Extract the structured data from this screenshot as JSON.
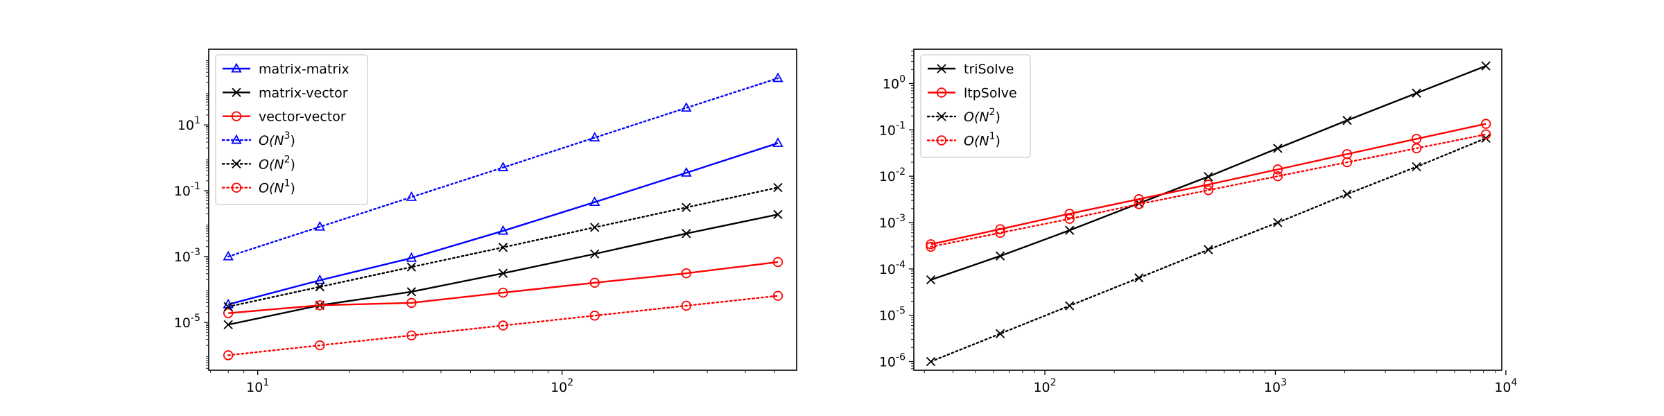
{
  "chart_data": [
    {
      "type": "line",
      "title": "",
      "xlabel": "",
      "ylabel": "",
      "xscale": "log",
      "yscale": "log",
      "xlim": [
        6.9,
        590
      ],
      "ylim": [
        3.5e-07,
        2000
      ],
      "xticks": [
        10,
        100
      ],
      "xticklabels": [
        "10^1",
        "10^2"
      ],
      "yticks": [
        1e-05,
        0.001,
        0.1,
        10
      ],
      "yticklabels": [
        "10^-5",
        "10^-3",
        "10^-1",
        "10^1"
      ],
      "legend_position": "upper-left",
      "grid": false,
      "x": [
        8,
        16,
        32,
        64,
        128,
        256,
        512
      ],
      "series": [
        {
          "name": "matrix-matrix",
          "label_base": "matrix-matrix",
          "label_sup": "",
          "label_italic": false,
          "color": "#0000ff",
          "marker": "triangle",
          "linestyle": "solid",
          "values": [
            3.5e-05,
            0.00019,
            0.0009,
            0.006,
            0.045,
            0.35,
            2.8
          ]
        },
        {
          "name": "matrix-vector",
          "label_base": "matrix-vector",
          "label_sup": "",
          "label_italic": false,
          "color": "#000000",
          "marker": "x",
          "linestyle": "solid",
          "values": [
            8.5e-06,
            3.3e-05,
            8.5e-05,
            0.00031,
            0.0012,
            0.005,
            0.019
          ]
        },
        {
          "name": "vector-vector",
          "label_base": "vector-vector",
          "label_sup": "",
          "label_italic": false,
          "color": "#ff0000",
          "marker": "circle",
          "linestyle": "solid",
          "values": [
            1.9e-05,
            3.3e-05,
            3.9e-05,
            8e-05,
            0.00016,
            0.00031,
            0.00068
          ]
        },
        {
          "name": "O(N^3)",
          "label_base": "O(N",
          "label_sup": "3",
          "label_italic": true,
          "color": "#0000ff",
          "marker": "triangle",
          "linestyle": "dotted",
          "values": [
            0.001,
            0.008,
            0.064,
            0.51,
            4.1,
            33,
            262
          ]
        },
        {
          "name": "O(N^2)",
          "label_base": "O(N",
          "label_sup": "2",
          "label_italic": true,
          "color": "#000000",
          "marker": "x",
          "linestyle": "dotted",
          "values": [
            3e-05,
            0.00012,
            0.00048,
            0.0019,
            0.0077,
            0.031,
            0.125
          ]
        },
        {
          "name": "O(N^1)",
          "label_base": "O(N",
          "label_sup": "1",
          "label_italic": true,
          "color": "#ff0000",
          "marker": "circle",
          "linestyle": "dotted",
          "values": [
            1e-06,
            2e-06,
            4e-06,
            8e-06,
            1.6e-05,
            3.2e-05,
            6.4e-05
          ]
        }
      ]
    },
    {
      "type": "line",
      "title": "",
      "xlabel": "",
      "ylabel": "",
      "xscale": "log",
      "yscale": "log",
      "xlim": [
        27,
        9600
      ],
      "ylim": [
        6.5e-07,
        5.5
      ],
      "xticks": [
        100,
        1000,
        10000
      ],
      "xticklabels": [
        "10^2",
        "10^3",
        "10^4"
      ],
      "yticks": [
        1e-06,
        1e-05,
        0.0001,
        0.001,
        0.01,
        0.1,
        1
      ],
      "yticklabels": [
        "10^-6",
        "10^-5",
        "10^-4",
        "10^-3",
        "10^-2",
        "10^-1",
        "10^0"
      ],
      "legend_position": "upper-left",
      "grid": false,
      "x": [
        32,
        64,
        128,
        256,
        512,
        1024,
        2048,
        4096,
        8192
      ],
      "series": [
        {
          "name": "triSolve",
          "label_base": "triSolve",
          "label_sup": "",
          "label_italic": false,
          "color": "#000000",
          "marker": "x",
          "linestyle": "solid",
          "values": [
            5.8e-05,
            0.00019,
            0.00068,
            0.0026,
            0.0098,
            0.04,
            0.16,
            0.62,
            2.4
          ]
        },
        {
          "name": "ltpSolve",
          "label_base": "ltpSolve",
          "label_sup": "",
          "label_italic": false,
          "color": "#ff0000",
          "marker": "circle",
          "linestyle": "solid",
          "values": [
            0.00034,
            0.00072,
            0.00155,
            0.0032,
            0.0066,
            0.014,
            0.03,
            0.064,
            0.135
          ]
        },
        {
          "name": "O(N^2)",
          "label_base": "O(N",
          "label_sup": "2",
          "label_italic": true,
          "color": "#000000",
          "marker": "x",
          "linestyle": "dotted",
          "values": [
            1e-06,
            4e-06,
            1.6e-05,
            6.4e-05,
            0.00026,
            0.001,
            0.0041,
            0.016,
            0.066
          ]
        },
        {
          "name": "O(N^1)",
          "label_base": "O(N",
          "label_sup": "1",
          "label_italic": true,
          "color": "#ff0000",
          "marker": "circle",
          "linestyle": "dotted",
          "values": [
            0.0003,
            0.0006,
            0.0012,
            0.0025,
            0.005,
            0.01,
            0.02,
            0.04,
            0.08
          ]
        }
      ]
    }
  ]
}
